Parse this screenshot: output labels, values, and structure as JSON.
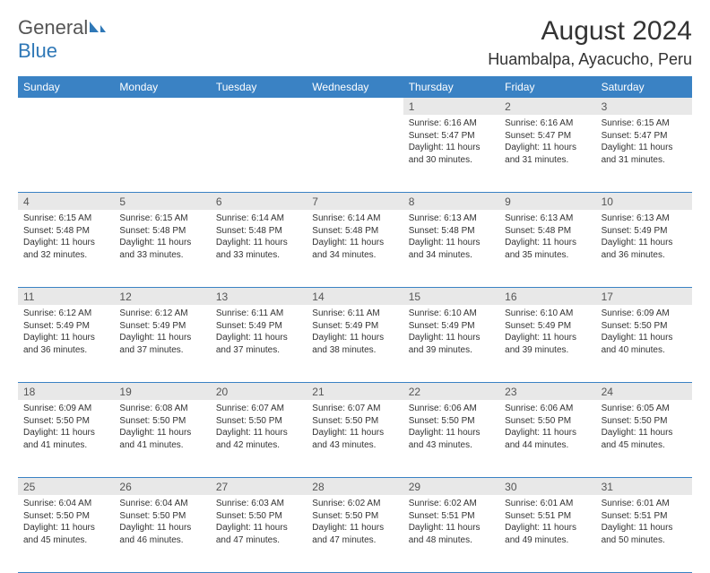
{
  "logo": {
    "prefix": "General",
    "suffix": "Blue"
  },
  "title": "August 2024",
  "location": "Huambalpa, Ayacucho, Peru",
  "colors": {
    "header_bg": "#3a82c4",
    "daynum_bg": "#e8e8e8",
    "border": "#3a82c4",
    "text": "#333333",
    "logo_blue": "#2f78b7"
  },
  "dayNames": [
    "Sunday",
    "Monday",
    "Tuesday",
    "Wednesday",
    "Thursday",
    "Friday",
    "Saturday"
  ],
  "weeks": [
    [
      null,
      null,
      null,
      null,
      {
        "n": "1",
        "sr": "6:16 AM",
        "ss": "5:47 PM",
        "dl": "11 hours and 30 minutes."
      },
      {
        "n": "2",
        "sr": "6:16 AM",
        "ss": "5:47 PM",
        "dl": "11 hours and 31 minutes."
      },
      {
        "n": "3",
        "sr": "6:15 AM",
        "ss": "5:47 PM",
        "dl": "11 hours and 31 minutes."
      }
    ],
    [
      {
        "n": "4",
        "sr": "6:15 AM",
        "ss": "5:48 PM",
        "dl": "11 hours and 32 minutes."
      },
      {
        "n": "5",
        "sr": "6:15 AM",
        "ss": "5:48 PM",
        "dl": "11 hours and 33 minutes."
      },
      {
        "n": "6",
        "sr": "6:14 AM",
        "ss": "5:48 PM",
        "dl": "11 hours and 33 minutes."
      },
      {
        "n": "7",
        "sr": "6:14 AM",
        "ss": "5:48 PM",
        "dl": "11 hours and 34 minutes."
      },
      {
        "n": "8",
        "sr": "6:13 AM",
        "ss": "5:48 PM",
        "dl": "11 hours and 34 minutes."
      },
      {
        "n": "9",
        "sr": "6:13 AM",
        "ss": "5:48 PM",
        "dl": "11 hours and 35 minutes."
      },
      {
        "n": "10",
        "sr": "6:13 AM",
        "ss": "5:49 PM",
        "dl": "11 hours and 36 minutes."
      }
    ],
    [
      {
        "n": "11",
        "sr": "6:12 AM",
        "ss": "5:49 PM",
        "dl": "11 hours and 36 minutes."
      },
      {
        "n": "12",
        "sr": "6:12 AM",
        "ss": "5:49 PM",
        "dl": "11 hours and 37 minutes."
      },
      {
        "n": "13",
        "sr": "6:11 AM",
        "ss": "5:49 PM",
        "dl": "11 hours and 37 minutes."
      },
      {
        "n": "14",
        "sr": "6:11 AM",
        "ss": "5:49 PM",
        "dl": "11 hours and 38 minutes."
      },
      {
        "n": "15",
        "sr": "6:10 AM",
        "ss": "5:49 PM",
        "dl": "11 hours and 39 minutes."
      },
      {
        "n": "16",
        "sr": "6:10 AM",
        "ss": "5:49 PM",
        "dl": "11 hours and 39 minutes."
      },
      {
        "n": "17",
        "sr": "6:09 AM",
        "ss": "5:50 PM",
        "dl": "11 hours and 40 minutes."
      }
    ],
    [
      {
        "n": "18",
        "sr": "6:09 AM",
        "ss": "5:50 PM",
        "dl": "11 hours and 41 minutes."
      },
      {
        "n": "19",
        "sr": "6:08 AM",
        "ss": "5:50 PM",
        "dl": "11 hours and 41 minutes."
      },
      {
        "n": "20",
        "sr": "6:07 AM",
        "ss": "5:50 PM",
        "dl": "11 hours and 42 minutes."
      },
      {
        "n": "21",
        "sr": "6:07 AM",
        "ss": "5:50 PM",
        "dl": "11 hours and 43 minutes."
      },
      {
        "n": "22",
        "sr": "6:06 AM",
        "ss": "5:50 PM",
        "dl": "11 hours and 43 minutes."
      },
      {
        "n": "23",
        "sr": "6:06 AM",
        "ss": "5:50 PM",
        "dl": "11 hours and 44 minutes."
      },
      {
        "n": "24",
        "sr": "6:05 AM",
        "ss": "5:50 PM",
        "dl": "11 hours and 45 minutes."
      }
    ],
    [
      {
        "n": "25",
        "sr": "6:04 AM",
        "ss": "5:50 PM",
        "dl": "11 hours and 45 minutes."
      },
      {
        "n": "26",
        "sr": "6:04 AM",
        "ss": "5:50 PM",
        "dl": "11 hours and 46 minutes."
      },
      {
        "n": "27",
        "sr": "6:03 AM",
        "ss": "5:50 PM",
        "dl": "11 hours and 47 minutes."
      },
      {
        "n": "28",
        "sr": "6:02 AM",
        "ss": "5:50 PM",
        "dl": "11 hours and 47 minutes."
      },
      {
        "n": "29",
        "sr": "6:02 AM",
        "ss": "5:51 PM",
        "dl": "11 hours and 48 minutes."
      },
      {
        "n": "30",
        "sr": "6:01 AM",
        "ss": "5:51 PM",
        "dl": "11 hours and 49 minutes."
      },
      {
        "n": "31",
        "sr": "6:01 AM",
        "ss": "5:51 PM",
        "dl": "11 hours and 50 minutes."
      }
    ]
  ],
  "labels": {
    "sunrise": "Sunrise:",
    "sunset": "Sunset:",
    "daylight": "Daylight:"
  }
}
